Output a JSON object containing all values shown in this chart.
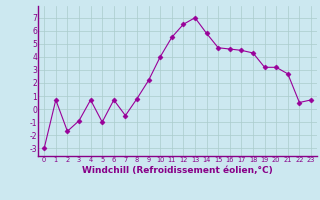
{
  "x": [
    0,
    1,
    2,
    3,
    4,
    5,
    6,
    7,
    8,
    9,
    10,
    11,
    12,
    13,
    14,
    15,
    16,
    17,
    18,
    19,
    20,
    21,
    22,
    23
  ],
  "y": [
    -3,
    0.7,
    -1.7,
    -0.9,
    0.7,
    -1.0,
    0.7,
    -0.5,
    0.8,
    2.2,
    4.0,
    5.5,
    6.5,
    7.0,
    5.8,
    4.7,
    4.6,
    4.5,
    4.3,
    3.2,
    3.2,
    2.7,
    0.5,
    0.7
  ],
  "line_color": "#990099",
  "marker": "D",
  "markersize": 2.5,
  "linewidth": 0.8,
  "xlabel": "Windchill (Refroidissement éolien,°C)",
  "xtick_labels": [
    "0",
    "1",
    "2",
    "3",
    "4",
    "5",
    "6",
    "7",
    "8",
    "9",
    "10",
    "11",
    "12",
    "13",
    "14",
    "15",
    "16",
    "17",
    "18",
    "19",
    "20",
    "21",
    "22",
    "23"
  ],
  "ytick_values": [
    -3,
    -2,
    -1,
    0,
    1,
    2,
    3,
    4,
    5,
    6,
    7
  ],
  "ylim": [
    -3.6,
    7.9
  ],
  "xlim": [
    -0.5,
    23.5
  ],
  "bg_color": "#cce8f0",
  "grid_color": "#aacccc",
  "label_color": "#880088",
  "spine_color": "#880088"
}
